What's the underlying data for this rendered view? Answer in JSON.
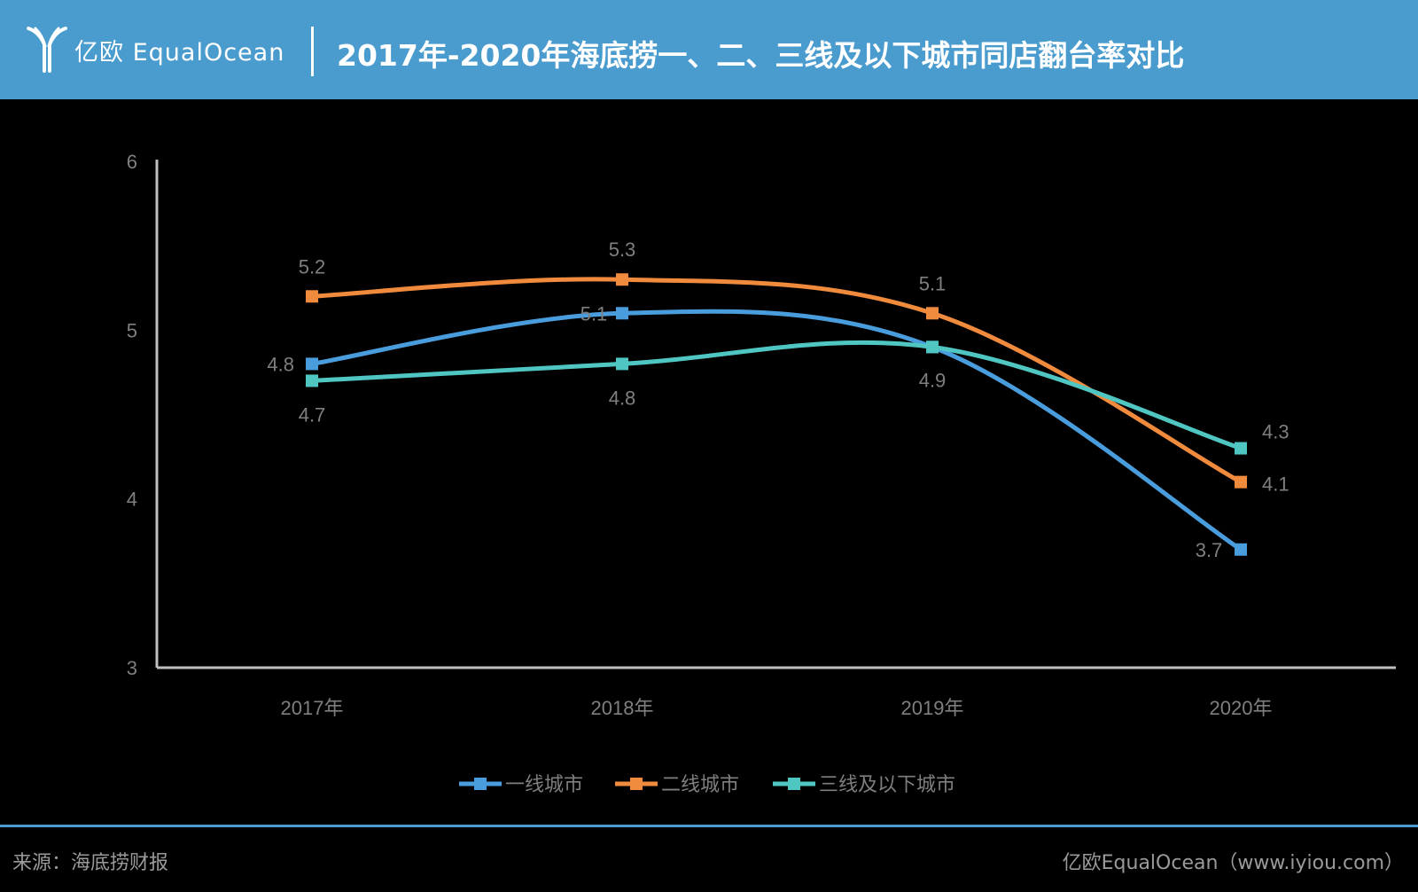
{
  "header": {
    "logo_text": "亿欧 EqualOcean",
    "title": "2017年-2020年海底捞一、二、三线及以下城市同店翻台率对比"
  },
  "footer": {
    "source": "来源：海底捞财报",
    "credit": "亿欧EqualOcean（www.iyiou.com）"
  },
  "colors": {
    "header_bg": "#4a9ccf",
    "series": [
      "#4a9ddd",
      "#f08a3c",
      "#50c6c3"
    ]
  },
  "chart_data": {
    "type": "line",
    "title": "2017年-2020年海底捞一、二、三线及以下城市同店翻台率对比",
    "categories": [
      "2017年",
      "2018年",
      "2019年",
      "2020年"
    ],
    "ylim": [
      3,
      6
    ],
    "yticks": [
      3,
      4,
      5,
      6
    ],
    "grid": false,
    "legend_position": "bottom",
    "smooth": true,
    "series": [
      {
        "name": "一线城市",
        "values": [
          4.8,
          5.1,
          4.9,
          3.7
        ],
        "labels": [
          "4.8",
          "5.1",
          "",
          "3.7"
        ]
      },
      {
        "name": "二线城市",
        "values": [
          5.2,
          5.3,
          5.1,
          4.1
        ],
        "labels": [
          "5.2",
          "5.3",
          "5.1",
          "4.1"
        ]
      },
      {
        "name": "三线及以下城市",
        "values": [
          4.7,
          4.8,
          4.9,
          4.3
        ],
        "labels": [
          "4.7",
          "4.8",
          "4.9",
          "4.3"
        ]
      }
    ]
  }
}
